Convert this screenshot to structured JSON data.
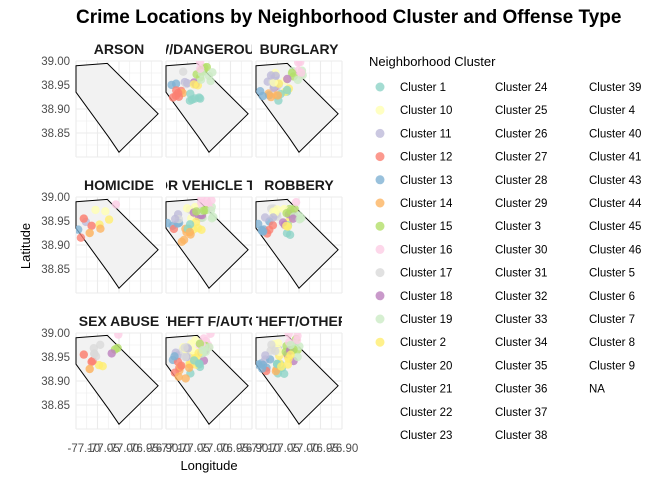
{
  "chart_data": {
    "type": "scatter",
    "title": "Crime Locations by Neighborhood Cluster and Offense Type",
    "xlabel": "Longitude",
    "ylabel": "Latitude",
    "xlim": [
      -77.12,
      -76.9
    ],
    "ylim": [
      38.8,
      39.0
    ],
    "x_ticks": [
      "-77.10",
      "-77.05",
      "-77.00",
      "-76.95",
      "-76.90"
    ],
    "y_ticks": [
      "38.85",
      "38.90",
      "38.95",
      "39.00"
    ],
    "grid": true,
    "legend_position": "right",
    "legend_title": "Neighborhood Cluster",
    "panels": [
      {
        "label": "ARSON",
        "density": 0
      },
      {
        "label": "ASSAULT W/DANGEROUS WEAPON",
        "density": 0.6
      },
      {
        "label": "BURGLARY",
        "density": 0.7
      },
      {
        "label": "HOMICIDE",
        "density": 0.15
      },
      {
        "label": "MOTOR VEHICLE THEFT",
        "density": 0.8
      },
      {
        "label": "ROBBERY",
        "density": 0.75
      },
      {
        "label": "SEX ABUSE",
        "density": 0.2
      },
      {
        "label": "THEFT F/AUTO",
        "density": 1.0
      },
      {
        "label": "THEFT/OTHER",
        "density": 0.9
      }
    ],
    "series": [
      {
        "name": "Cluster 1",
        "color": "#8DD3C7",
        "shown": true
      },
      {
        "name": "Cluster 10",
        "color": "#FFFFB3",
        "shown": true
      },
      {
        "name": "Cluster 11",
        "color": "#BEBADA",
        "shown": true
      },
      {
        "name": "Cluster 12",
        "color": "#FB8072",
        "shown": true
      },
      {
        "name": "Cluster 13",
        "color": "#80B1D3",
        "shown": true
      },
      {
        "name": "Cluster 14",
        "color": "#FDB462",
        "shown": true
      },
      {
        "name": "Cluster 15",
        "color": "#B3DE69",
        "shown": true
      },
      {
        "name": "Cluster 16",
        "color": "#FCCDE5",
        "shown": true
      },
      {
        "name": "Cluster 17",
        "color": "#D9D9D9",
        "shown": true
      },
      {
        "name": "Cluster 18",
        "color": "#BC80BD",
        "shown": true
      },
      {
        "name": "Cluster 19",
        "color": "#CCEBC5",
        "shown": true
      },
      {
        "name": "Cluster 2",
        "color": "#FFED6F",
        "shown": true
      },
      {
        "name": "Cluster 20",
        "color": "",
        "shown": false
      },
      {
        "name": "Cluster 21",
        "color": "",
        "shown": false
      },
      {
        "name": "Cluster 22",
        "color": "",
        "shown": false
      },
      {
        "name": "Cluster 23",
        "color": "",
        "shown": false
      },
      {
        "name": "Cluster 24",
        "color": "",
        "shown": false
      },
      {
        "name": "Cluster 25",
        "color": "",
        "shown": false
      },
      {
        "name": "Cluster 26",
        "color": "",
        "shown": false
      },
      {
        "name": "Cluster 27",
        "color": "",
        "shown": false
      },
      {
        "name": "Cluster 28",
        "color": "",
        "shown": false
      },
      {
        "name": "Cluster 29",
        "color": "",
        "shown": false
      },
      {
        "name": "Cluster 3",
        "color": "",
        "shown": false
      },
      {
        "name": "Cluster 30",
        "color": "",
        "shown": false
      },
      {
        "name": "Cluster 31",
        "color": "",
        "shown": false
      },
      {
        "name": "Cluster 32",
        "color": "",
        "shown": false
      },
      {
        "name": "Cluster 33",
        "color": "",
        "shown": false
      },
      {
        "name": "Cluster 34",
        "color": "",
        "shown": false
      },
      {
        "name": "Cluster 35",
        "color": "",
        "shown": false
      },
      {
        "name": "Cluster 36",
        "color": "",
        "shown": false
      },
      {
        "name": "Cluster 37",
        "color": "",
        "shown": false
      },
      {
        "name": "Cluster 38",
        "color": "",
        "shown": false
      },
      {
        "name": "Cluster 39",
        "color": "",
        "shown": false
      },
      {
        "name": "Cluster 4",
        "color": "",
        "shown": false
      },
      {
        "name": "Cluster 40",
        "color": "",
        "shown": false
      },
      {
        "name": "Cluster 41",
        "color": "",
        "shown": false
      },
      {
        "name": "Cluster 43",
        "color": "",
        "shown": false
      },
      {
        "name": "Cluster 44",
        "color": "",
        "shown": false
      },
      {
        "name": "Cluster 45",
        "color": "",
        "shown": false
      },
      {
        "name": "Cluster 46",
        "color": "",
        "shown": false
      },
      {
        "name": "Cluster 5",
        "color": "",
        "shown": false
      },
      {
        "name": "Cluster 6",
        "color": "",
        "shown": false
      },
      {
        "name": "Cluster 7",
        "color": "",
        "shown": false
      },
      {
        "name": "Cluster 8",
        "color": "",
        "shown": false
      },
      {
        "name": "Cluster 9",
        "color": "",
        "shown": false
      },
      {
        "name": "NA",
        "color": "",
        "shown": false
      }
    ]
  }
}
